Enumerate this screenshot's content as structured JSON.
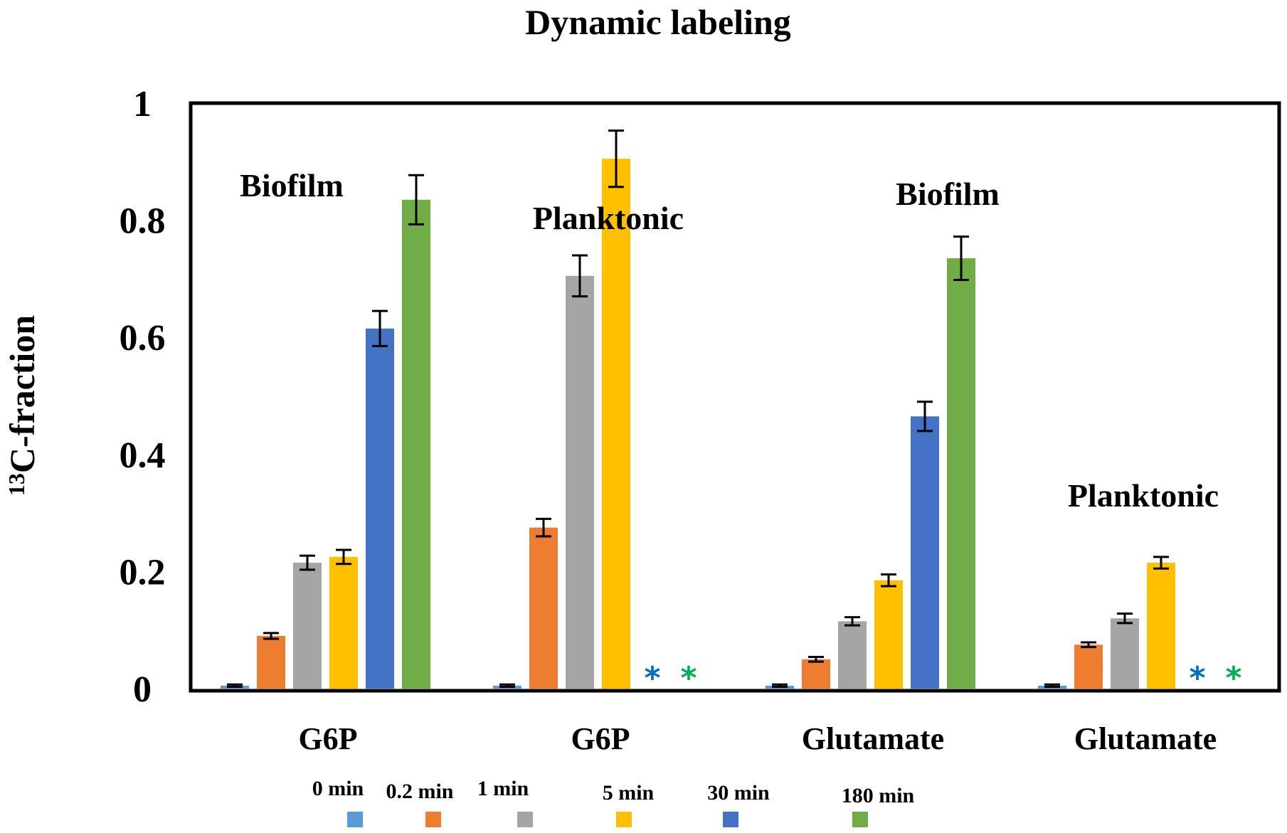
{
  "chart_data": {
    "type": "bar",
    "title": "Dynamic labeling",
    "ylabel_sup": "13",
    "ylabel": "C-fraction",
    "xlabel": "",
    "ylim": [
      0,
      1
    ],
    "yticks": [
      "0",
      "0.2",
      "0.4",
      "0.6",
      "0.8",
      "1"
    ],
    "ytick_values": [
      0,
      0.2,
      0.4,
      0.6,
      0.8,
      1
    ],
    "categories": [
      "G6P",
      "G6P",
      "Glutamate",
      "Glutamate"
    ],
    "group_labels": [
      "Biofilm",
      "Planktonic",
      "Biofilm",
      "Planktonic"
    ],
    "series": [
      {
        "name": "0 min",
        "color": "#5b9bd5",
        "values": [
          0.005,
          0.005,
          0.005,
          0.005
        ],
        "errors": [
          0.002,
          0.002,
          0.002,
          0.002
        ]
      },
      {
        "name": "0.2 min",
        "color": "#ed7d31",
        "values": [
          0.09,
          0.275,
          0.05,
          0.075
        ],
        "errors": [
          0.005,
          0.015,
          0.004,
          0.004
        ]
      },
      {
        "name": "1 min",
        "color": "#a5a5a5",
        "values": [
          0.215,
          0.705,
          0.115,
          0.12
        ],
        "errors": [
          0.012,
          0.035,
          0.007,
          0.008
        ]
      },
      {
        "name": "5 min",
        "color": "#ffc000",
        "values": [
          0.225,
          0.905,
          0.185,
          0.215
        ],
        "errors": [
          0.012,
          0.048,
          0.01,
          0.01
        ]
      },
      {
        "name": "30 min",
        "color": "#4472c4",
        "values": [
          0.615,
          null,
          0.465,
          null
        ],
        "errors": [
          0.03,
          null,
          0.025,
          null
        ]
      },
      {
        "name": "180 min",
        "color": "#70ad47",
        "values": [
          0.835,
          null,
          0.735,
          null
        ],
        "errors": [
          0.042,
          null,
          0.037,
          null
        ]
      }
    ],
    "annotations": [
      {
        "text": "*",
        "category_index": 1,
        "series_index": 4,
        "color": "#0070c0"
      },
      {
        "text": "*",
        "category_index": 1,
        "series_index": 5,
        "color": "#00b050"
      },
      {
        "text": "*",
        "category_index": 3,
        "series_index": 4,
        "color": "#0070c0"
      },
      {
        "text": "*",
        "category_index": 3,
        "series_index": 5,
        "color": "#00b050"
      }
    ],
    "legend_position": "bottom"
  }
}
